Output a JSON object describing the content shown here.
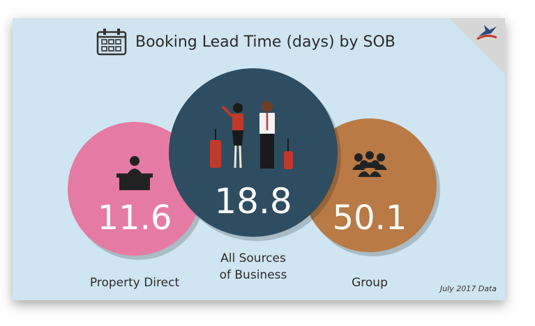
{
  "chart_data": {
    "type": "bubble",
    "title": "Booking Lead Time (days) by SOB",
    "footnote": "July 2017 Data",
    "series": [
      {
        "category": "Property Direct",
        "label_lines": [
          "Property Direct"
        ],
        "value": 11.6,
        "color": "#e57ba5",
        "icon": "desk-person-icon"
      },
      {
        "category": "All Sources of Business",
        "label_lines": [
          "All Sources",
          "of Business"
        ],
        "value": 18.8,
        "color": "#2e4d61",
        "icon": "travelers-icon"
      },
      {
        "category": "Group",
        "label_lines": [
          "Group"
        ],
        "value": 50.1,
        "color": "#b97a45",
        "icon": "group-icon"
      }
    ]
  },
  "colors": {
    "background": "#cfe5f1",
    "title": "#2b2b2b",
    "value_text": "#ffffff"
  }
}
